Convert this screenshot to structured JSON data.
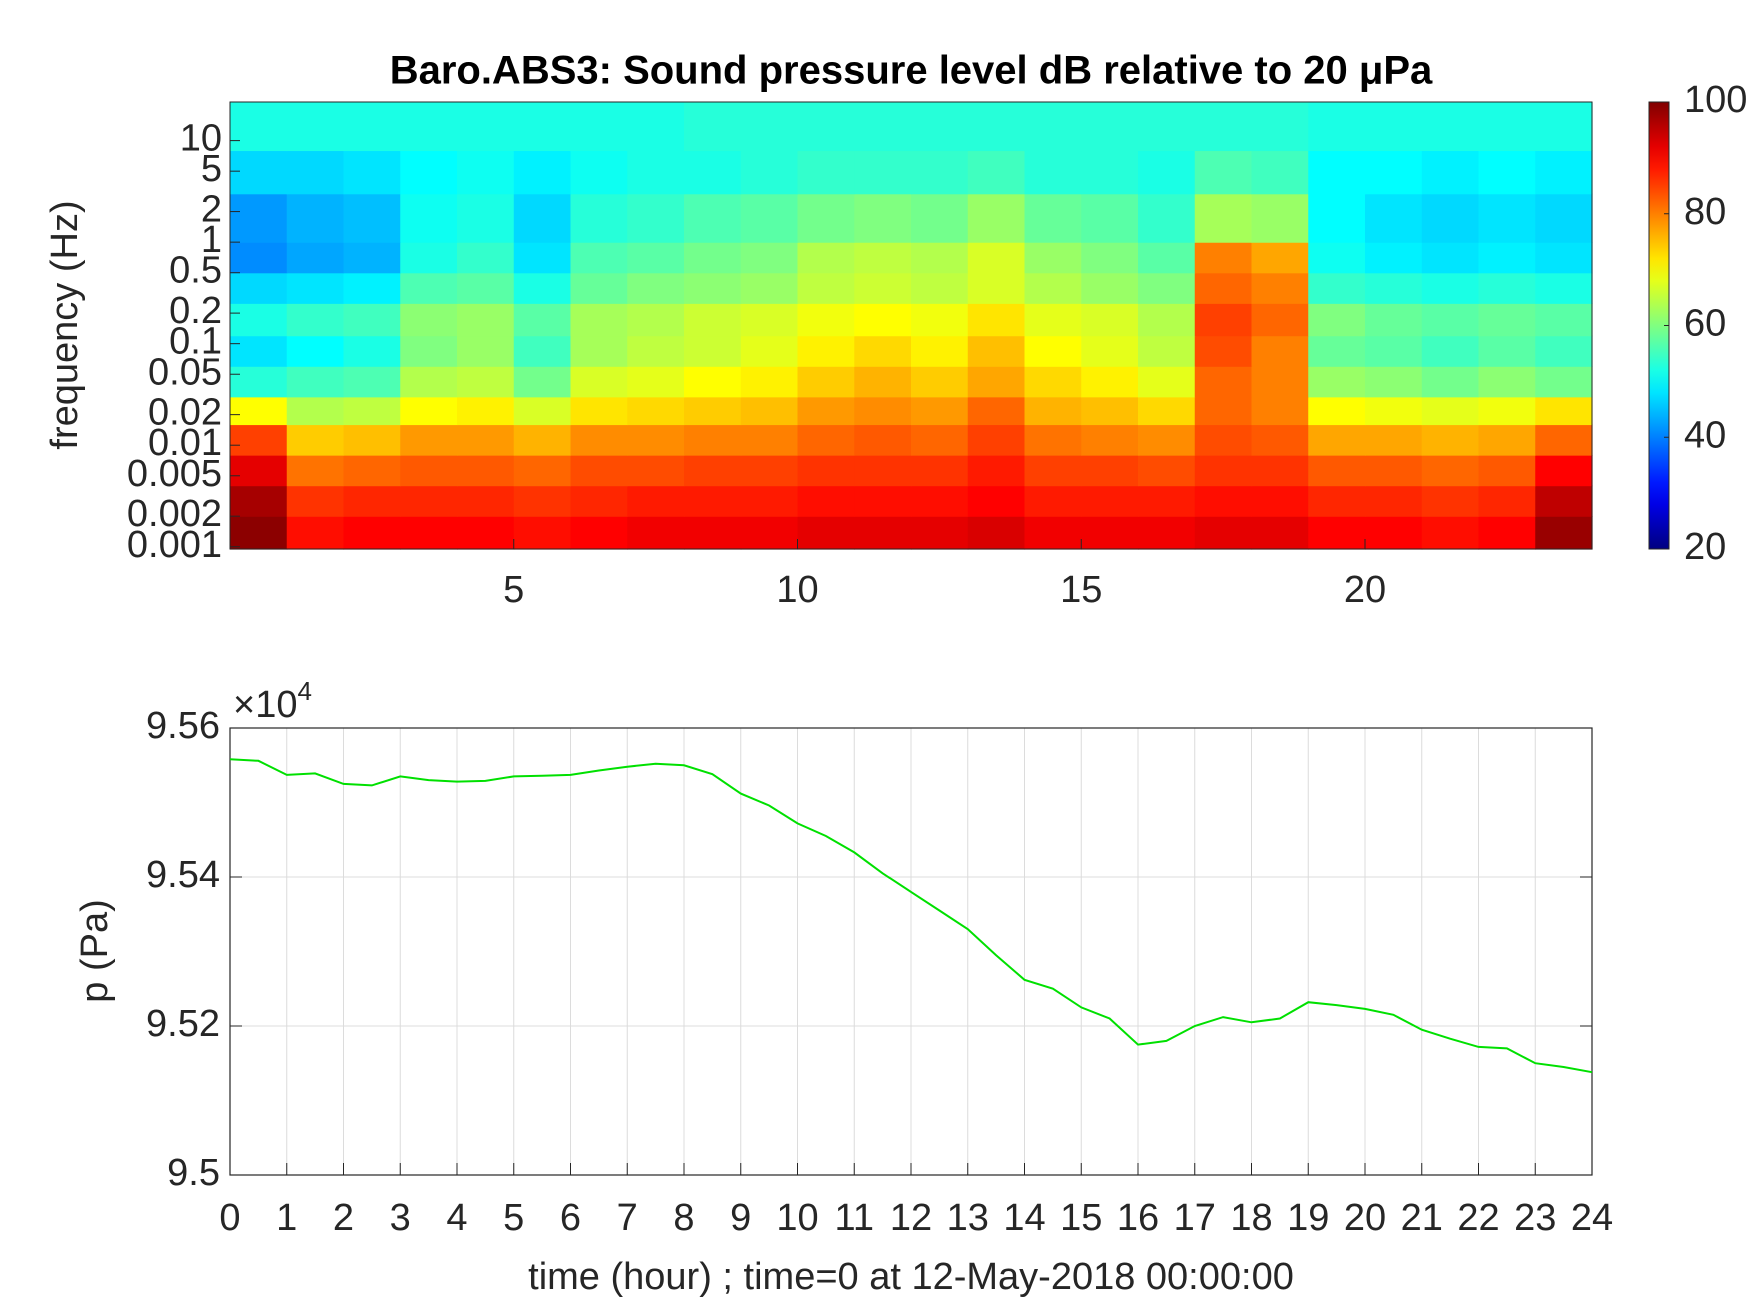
{
  "chart_data": [
    {
      "type": "heatmap",
      "title": "Baro.ABS3: Sound pressure level dB relative to 20 μPa",
      "ylabel": "frequency (Hz)",
      "log_y": true,
      "colormap": "jet",
      "clim": [
        20,
        100
      ],
      "cticks": [
        20,
        40,
        60,
        80,
        100
      ],
      "xlim": [
        0,
        24
      ],
      "xticks": [
        5,
        10,
        15,
        20
      ],
      "ylim": [
        0.00095,
        24
      ],
      "yticks": [
        10,
        5,
        2,
        1,
        0.5,
        0.2,
        0.1,
        0.05,
        0.02,
        0.01,
        0.005,
        0.002,
        0.001
      ],
      "x_edges": [
        0,
        1,
        2,
        3,
        4,
        5,
        6,
        7,
        8,
        9,
        10,
        11,
        12,
        13,
        14,
        15,
        16,
        17,
        18,
        19,
        20,
        21,
        22,
        23,
        24
      ],
      "y_edges": [
        0.00095,
        0.002,
        0.004,
        0.008,
        0.016,
        0.03,
        0.06,
        0.12,
        0.25,
        0.5,
        1,
        3,
        8,
        24
      ],
      "z": [
        [
          99,
          89,
          90,
          90,
          90,
          89,
          90,
          91,
          91,
          91,
          92,
          92,
          92,
          93,
          91,
          91,
          91,
          92,
          92,
          90,
          90,
          89,
          90,
          98
        ],
        [
          97,
          86,
          87,
          87,
          87,
          86,
          87,
          88,
          88,
          88,
          89,
          89,
          89,
          90,
          88,
          88,
          88,
          89,
          89,
          87,
          87,
          86,
          87,
          95
        ],
        [
          92,
          81,
          82,
          83,
          83,
          82,
          84,
          84,
          85,
          85,
          86,
          86,
          86,
          88,
          85,
          85,
          84,
          86,
          86,
          83,
          83,
          82,
          83,
          90
        ],
        [
          85,
          74,
          75,
          78,
          78,
          76,
          79,
          79,
          80,
          80,
          82,
          83,
          82,
          85,
          81,
          80,
          79,
          84,
          83,
          77,
          77,
          76,
          77,
          82
        ],
        [
          70,
          64,
          65,
          70,
          71,
          67,
          72,
          73,
          74,
          75,
          78,
          79,
          78,
          82,
          76,
          75,
          73,
          82,
          80,
          70,
          69,
          68,
          69,
          72
        ],
        [
          53,
          55,
          56,
          64,
          65,
          59,
          67,
          68,
          70,
          71,
          74,
          76,
          74,
          77,
          73,
          71,
          68,
          82,
          80,
          62,
          61,
          59,
          61,
          59
        ],
        [
          48,
          50,
          52,
          60,
          62,
          55,
          63,
          65,
          66,
          68,
          71,
          73,
          71,
          75,
          70,
          68,
          65,
          84,
          80,
          58,
          57,
          55,
          57,
          55
        ],
        [
          52,
          54,
          55,
          61,
          62,
          57,
          63,
          64,
          66,
          67,
          69,
          70,
          69,
          72,
          68,
          67,
          64,
          85,
          82,
          60,
          58,
          57,
          58,
          57
        ],
        [
          47,
          48,
          49,
          56,
          57,
          52,
          58,
          60,
          61,
          62,
          65,
          66,
          65,
          67,
          64,
          62,
          60,
          82,
          80,
          54,
          53,
          52,
          53,
          52
        ],
        [
          41,
          43,
          44,
          52,
          54,
          48,
          56,
          57,
          59,
          60,
          64,
          65,
          64,
          67,
          62,
          60,
          57,
          80,
          77,
          51,
          49,
          48,
          49,
          48
        ],
        [
          42,
          44,
          45,
          51,
          52,
          47,
          53,
          54,
          56,
          57,
          59,
          60,
          59,
          62,
          58,
          57,
          54,
          63,
          62,
          50,
          48,
          47,
          48,
          47
        ],
        [
          47,
          47,
          48,
          50,
          51,
          49,
          51,
          52,
          52,
          53,
          54,
          54,
          54,
          55,
          53,
          53,
          52,
          56,
          55,
          50,
          50,
          49,
          50,
          49
        ],
        [
          52,
          52,
          52,
          52,
          52,
          52,
          52,
          52,
          53,
          53,
          53,
          53,
          53,
          53,
          53,
          53,
          53,
          53,
          53,
          52,
          52,
          52,
          52,
          52
        ]
      ]
    },
    {
      "type": "line",
      "ylabel": "p (Pa)",
      "xlabel": "time (hour) ; time=0 at 12-May-2018 00:00:00",
      "y_multiplier": {
        "base": "×10",
        "exponent": "4"
      },
      "color": "#00e000",
      "grid": true,
      "xlim": [
        0,
        24
      ],
      "xticks": [
        0,
        1,
        2,
        3,
        4,
        5,
        6,
        7,
        8,
        9,
        10,
        11,
        12,
        13,
        14,
        15,
        16,
        17,
        18,
        19,
        20,
        21,
        22,
        23,
        24
      ],
      "ylim": [
        9.5,
        9.56
      ],
      "yticks": [
        9.5,
        9.52,
        9.54,
        9.56
      ],
      "x": [
        0,
        0.5,
        1,
        1.5,
        2,
        2.5,
        3,
        3.5,
        4,
        4.5,
        5,
        5.5,
        6,
        6.5,
        7,
        7.5,
        8,
        8.5,
        9,
        9.5,
        10,
        10.5,
        11,
        11.5,
        12,
        12.5,
        13,
        13.5,
        14,
        14.5,
        15,
        15.5,
        16,
        16.5,
        17,
        17.5,
        18,
        18.5,
        19,
        19.5,
        20,
        20.5,
        21,
        21.5,
        22,
        22.5,
        23,
        23.5,
        24
      ],
      "values": [
        9.5558,
        9.5556,
        9.5537,
        9.5539,
        9.5525,
        9.5523,
        9.5535,
        9.553,
        9.5528,
        9.5529,
        9.5535,
        9.5536,
        9.5537,
        9.5543,
        9.5548,
        9.5552,
        9.555,
        9.5538,
        9.5512,
        9.5496,
        9.5472,
        9.5455,
        9.5433,
        9.5405,
        9.538,
        9.5355,
        9.533,
        9.5295,
        9.5262,
        9.525,
        9.5225,
        9.521,
        9.5175,
        9.518,
        9.52,
        9.5212,
        9.5205,
        9.521,
        9.5232,
        9.5228,
        9.5223,
        9.5215,
        9.5195,
        9.5183,
        9.5172,
        9.517,
        9.515,
        9.5145,
        9.5138
      ]
    }
  ]
}
